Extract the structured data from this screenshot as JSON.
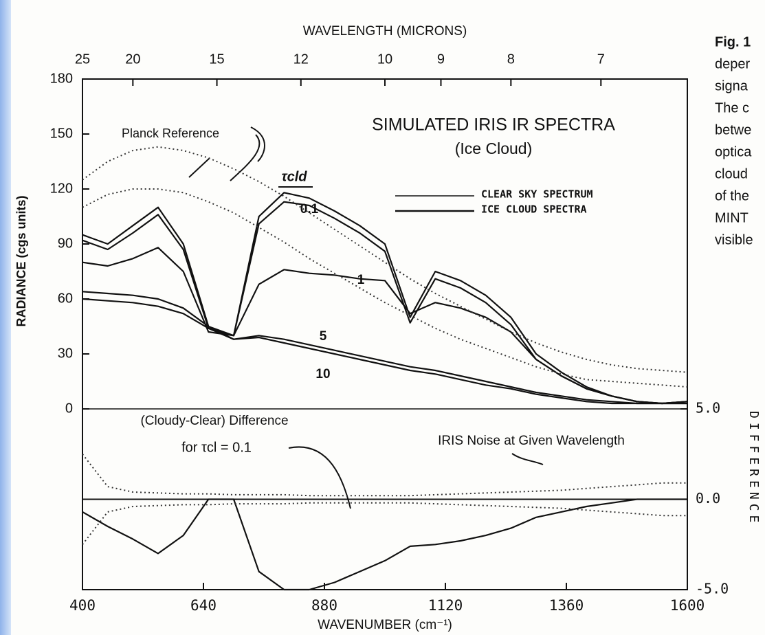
{
  "chart_data": {
    "type": "line",
    "title": "SIMULATED IRIS IR SPECTRA",
    "subtitle": "(Ice Cloud)",
    "x_label": "WAVENUMBER (cm⁻¹)",
    "y_label": "RADIANCE (cgs units)",
    "x2_label": "WAVELENGTH (MICRONS)",
    "y2_label": "DIFFERENCE",
    "x": [
      400,
      450,
      500,
      550,
      600,
      650,
      700,
      750,
      800,
      850,
      900,
      950,
      1000,
      1050,
      1100,
      1150,
      1200,
      1250,
      1300,
      1350,
      1400,
      1450,
      1500,
      1550,
      1600
    ],
    "xlim": [
      400,
      1600
    ],
    "xticks": [
      400,
      640,
      880,
      1120,
      1360,
      1600
    ],
    "x2ticks": [
      25,
      20,
      15,
      12,
      10,
      9,
      8,
      7
    ],
    "ylim": [
      0,
      180
    ],
    "yticks": [
      0,
      30,
      60,
      90,
      120,
      150,
      180
    ],
    "y2lim": [
      -5,
      5
    ],
    "y2ticks": [
      {
        "value": 5,
        "label": "5.0"
      },
      {
        "value": 0,
        "label": "0.0"
      },
      {
        "value": -5,
        "label": "-5.0"
      }
    ],
    "series": [
      {
        "name": "CLEAR SKY SPECTRUM",
        "color": "#111111",
        "values": [
          95,
          90,
          100,
          110,
          90,
          45,
          40,
          105,
          118,
          115,
          108,
          100,
          90,
          50,
          75,
          70,
          62,
          50,
          30,
          20,
          12,
          7,
          4,
          3,
          4
        ]
      },
      {
        "name": "0.1",
        "color": "#111111",
        "values": [
          92,
          87,
          96,
          106,
          87,
          44,
          40,
          101,
          113,
          111,
          104,
          96,
          86,
          47,
          71,
          66,
          58,
          46,
          27,
          18,
          11,
          7,
          4,
          3,
          4
        ]
      },
      {
        "name": "1",
        "color": "#111111",
        "values": [
          80,
          78,
          82,
          88,
          75,
          42,
          40,
          68,
          76,
          74,
          73,
          71,
          70,
          52,
          58,
          55,
          50,
          42,
          27,
          18,
          11,
          7,
          4,
          3,
          4
        ]
      },
      {
        "name": "5",
        "color": "#111111",
        "values": [
          64,
          63,
          62,
          60,
          55,
          45,
          38,
          40,
          38,
          35,
          32,
          29,
          26,
          23,
          21,
          18,
          15,
          12,
          9,
          7,
          5,
          4,
          3,
          3,
          3
        ]
      },
      {
        "name": "10",
        "color": "#111111",
        "values": [
          60,
          59,
          58,
          56,
          52,
          44,
          38,
          39,
          36,
          33,
          30,
          27,
          24,
          21,
          19,
          16,
          13,
          11,
          8,
          6,
          4,
          3,
          3,
          3,
          3
        ]
      },
      {
        "name": "Planck Reference",
        "color": "#333333",
        "dash": "dotted",
        "values": [
          125,
          135,
          141,
          143,
          141,
          137,
          131,
          124,
          116,
          107,
          98,
          89,
          80,
          71,
          63,
          56,
          49,
          42,
          36,
          31,
          27,
          24,
          22,
          21,
          20
        ]
      },
      {
        "name": "Planck Reference",
        "color": "#333333",
        "dash": "dotted",
        "values": [
          110,
          117,
          120,
          120,
          118,
          113,
          107,
          99,
          91,
          82,
          74,
          66,
          58,
          51,
          44,
          38,
          33,
          28,
          23,
          19,
          16,
          15,
          14,
          13,
          12
        ]
      },
      {
        "name": "(Cloudy-Clear) Difference",
        "color": "#111111",
        "axis": "y2",
        "values": [
          -0.7,
          -1.5,
          -2.2,
          -3,
          -2,
          0,
          0,
          -4,
          -5,
          -5,
          -4.6,
          -4,
          -3.4,
          -2.6,
          -2.5,
          -2.3,
          -2,
          -1.6,
          -1,
          -0.7,
          -0.4,
          -0.2,
          0,
          0,
          0
        ]
      },
      {
        "name": "IRIS Noise at Given Wavelength",
        "color": "#333333",
        "axis": "y2",
        "dash": "dotted",
        "values": [
          2.5,
          0.7,
          0.4,
          0.35,
          0.3,
          0.3,
          0.25,
          0.25,
          0.25,
          0.2,
          0.2,
          0.2,
          0.2,
          0.2,
          0.25,
          0.3,
          0.35,
          0.4,
          0.45,
          0.5,
          0.6,
          0.7,
          0.8,
          0.9,
          0.9
        ]
      },
      {
        "name": "IRIS Noise at Given Wavelength",
        "color": "#333333",
        "axis": "y2",
        "dash": "dotted",
        "values": [
          -2.5,
          -0.7,
          -0.4,
          -0.35,
          -0.3,
          -0.3,
          -0.25,
          -0.25,
          -0.25,
          -0.2,
          -0.2,
          -0.2,
          -0.2,
          -0.2,
          -0.25,
          -0.3,
          -0.35,
          -0.4,
          -0.45,
          -0.5,
          -0.6,
          -0.7,
          -0.8,
          -0.9,
          -0.9
        ]
      }
    ],
    "legend_cloud": "ICE CLOUD SPECTRA",
    "annotations": {
      "planck": "Planck Reference",
      "tau": "τcld",
      "diff_1": "(Cloudy-Clear) Difference",
      "diff_2": "for τcl = 0.1"
    }
  },
  "caption": [
    "Fig. 1",
    "deper",
    "signa",
    "The c",
    "betwe",
    "optica",
    "cloud",
    "of the",
    "MINT",
    "visible"
  ]
}
